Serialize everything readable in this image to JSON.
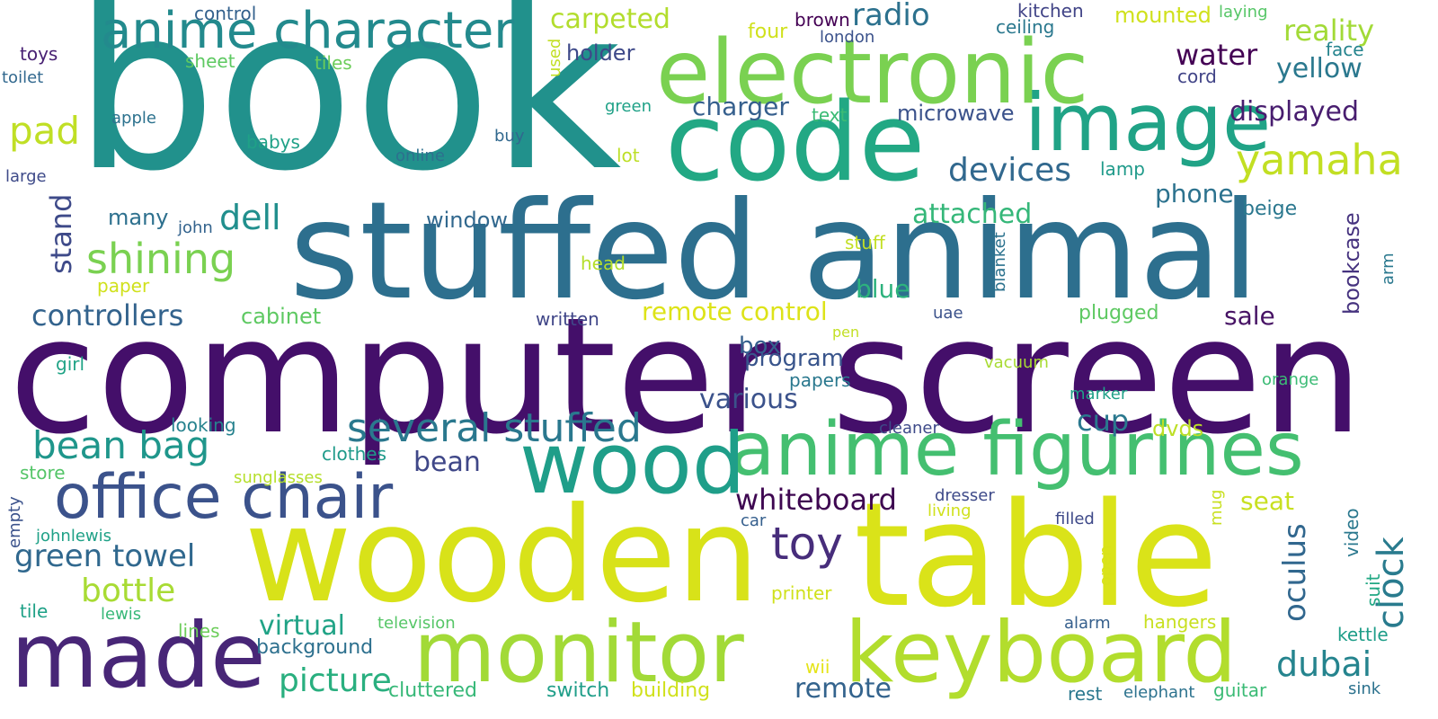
{
  "words": [
    {
      "text": "book",
      "color": "#21918c"
    },
    {
      "text": "computer screen",
      "color": "#440f6a"
    },
    {
      "text": "stuffed animal",
      "color": "#2d6f8e"
    },
    {
      "text": "wooden",
      "color": "#d8e219"
    },
    {
      "text": "table",
      "color": "#dae319"
    },
    {
      "text": "electronic",
      "color": "#7ad151"
    },
    {
      "text": "code",
      "color": "#22a884"
    },
    {
      "text": "image",
      "color": "#20a386"
    },
    {
      "text": "anime character",
      "color": "#238a8d"
    },
    {
      "text": "anime figurines",
      "color": "#44bf70"
    },
    {
      "text": "wood",
      "color": "#1f9e89"
    },
    {
      "text": "monitor",
      "color": "#a2da37"
    },
    {
      "text": "keyboard",
      "color": "#b2dd2d"
    },
    {
      "text": "made",
      "color": "#482677"
    },
    {
      "text": "office chair",
      "color": "#3b528b"
    },
    {
      "text": "several stuffed",
      "color": "#2a788e"
    },
    {
      "text": "bean bag",
      "color": "#1f968b"
    },
    {
      "text": "shining",
      "color": "#7ad151"
    },
    {
      "text": "yamaha",
      "color": "#c2df23"
    },
    {
      "text": "toy",
      "color": "#472d7b"
    },
    {
      "text": "green towel",
      "color": "#30688e"
    },
    {
      "text": "dell",
      "color": "#218f8d"
    },
    {
      "text": "devices",
      "color": "#31688e"
    },
    {
      "text": "radio",
      "color": "#2c718e"
    },
    {
      "text": "pad",
      "color": "#c0df25"
    },
    {
      "text": "controllers",
      "color": "#33638d"
    },
    {
      "text": "bottle",
      "color": "#a8db34"
    },
    {
      "text": "whiteboard",
      "color": "#3e0751"
    },
    {
      "text": "picture",
      "color": "#29af7f"
    },
    {
      "text": "dubai",
      "color": "#25848e"
    },
    {
      "text": "clock",
      "color": "#297b8e"
    },
    {
      "text": "oculus",
      "color": "#31678e"
    },
    {
      "text": "remote control",
      "color": "#dde318"
    },
    {
      "text": "carpeted",
      "color": "#b2dd2d"
    },
    {
      "text": "attached",
      "color": "#35b779"
    },
    {
      "text": "reality",
      "color": "#a2da37"
    },
    {
      "text": "yellow",
      "color": "#2a788e"
    },
    {
      "text": "displayed",
      "color": "#481d6f"
    },
    {
      "text": "water",
      "color": "#440154"
    },
    {
      "text": "cup",
      "color": "#2a788e"
    },
    {
      "text": "virtual",
      "color": "#20a386"
    },
    {
      "text": "remote",
      "color": "#33638d"
    },
    {
      "text": "stand",
      "color": "#3e4a89"
    },
    {
      "text": "various",
      "color": "#3b528b"
    },
    {
      "text": "program",
      "color": "#39558c"
    },
    {
      "text": "phone",
      "color": "#2c728e"
    },
    {
      "text": "bean",
      "color": "#3f4788"
    },
    {
      "text": "blue",
      "color": "#2db27d"
    },
    {
      "text": "sale",
      "color": "#471365"
    },
    {
      "text": "seat",
      "color": "#c8e020"
    },
    {
      "text": "microwave",
      "color": "#3b528b"
    },
    {
      "text": "charger",
      "color": "#355f8d"
    },
    {
      "text": "window",
      "color": "#31688e"
    },
    {
      "text": "box",
      "color": "#355f8d"
    },
    {
      "text": "bookcase",
      "color": "#46337f"
    },
    {
      "text": "many",
      "color": "#2d708e"
    },
    {
      "text": "cabinet",
      "color": "#5ec962"
    },
    {
      "text": "holder",
      "color": "#3e4989"
    },
    {
      "text": "mounted",
      "color": "#d0e11c"
    },
    {
      "text": "dvds",
      "color": "#bddf26"
    },
    {
      "text": "beige",
      "color": "#2a778e"
    },
    {
      "text": "background",
      "color": "#2d708e"
    },
    {
      "text": "cluttered",
      "color": "#37b878"
    },
    {
      "text": "switch",
      "color": "#1f9e89"
    },
    {
      "text": "building",
      "color": "#d0e11c"
    },
    {
      "text": "plugged",
      "color": "#5ec962"
    },
    {
      "text": "written",
      "color": "#404688"
    },
    {
      "text": "kitchen",
      "color": "#414487"
    },
    {
      "text": "ceiling",
      "color": "#2a788e"
    },
    {
      "text": "face",
      "color": "#25848e"
    },
    {
      "text": "cord",
      "color": "#414487"
    },
    {
      "text": "laying",
      "color": "#56c667"
    },
    {
      "text": "brown",
      "color": "#440154"
    },
    {
      "text": "london",
      "color": "#3b528b"
    },
    {
      "text": "four",
      "color": "#d0e11c"
    },
    {
      "text": "control",
      "color": "#34618d"
    },
    {
      "text": "toys",
      "color": "#482173"
    },
    {
      "text": "toilet",
      "color": "#31688e"
    },
    {
      "text": "sheet",
      "color": "#5ec962"
    },
    {
      "text": "tiles",
      "color": "#6ccd5a"
    },
    {
      "text": "apple",
      "color": "#2c728e"
    },
    {
      "text": "babys",
      "color": "#1fa187"
    },
    {
      "text": "online",
      "color": "#2d708e"
    },
    {
      "text": "buy",
      "color": "#31688e"
    },
    {
      "text": "green",
      "color": "#1fa187"
    },
    {
      "text": "text",
      "color": "#3bbb75"
    },
    {
      "text": "lot",
      "color": "#bddf26"
    },
    {
      "text": "used",
      "color": "#c2df23"
    },
    {
      "text": "lamp",
      "color": "#1f9a8a"
    },
    {
      "text": "large",
      "color": "#3e4a89"
    },
    {
      "text": "john",
      "color": "#33638d"
    },
    {
      "text": "stuff",
      "color": "#c2df23"
    },
    {
      "text": "head",
      "color": "#b5de2b"
    },
    {
      "text": "paper",
      "color": "#d0e11c"
    },
    {
      "text": "blanket",
      "color": "#2c728e"
    },
    {
      "text": "arm",
      "color": "#2a788e"
    },
    {
      "text": "uae",
      "color": "#3b528b"
    },
    {
      "text": "pen",
      "color": "#c2df23"
    },
    {
      "text": "girl",
      "color": "#20a386"
    },
    {
      "text": "vacuum",
      "color": "#a8db34"
    },
    {
      "text": "orange",
      "color": "#3bbb75"
    },
    {
      "text": "papers",
      "color": "#2a788e"
    },
    {
      "text": "marker",
      "color": "#1fa187"
    },
    {
      "text": "looking",
      "color": "#26828e"
    },
    {
      "text": "cleaner",
      "color": "#3e4a89"
    },
    {
      "text": "clothes",
      "color": "#1f9a8a"
    },
    {
      "text": "store",
      "color": "#54c568"
    },
    {
      "text": "sunglasses",
      "color": "#b5de2b"
    },
    {
      "text": "empty",
      "color": "#3b528b"
    },
    {
      "text": "dresser",
      "color": "#3e4a89"
    },
    {
      "text": "living",
      "color": "#d0e11c"
    },
    {
      "text": "car",
      "color": "#355f8d"
    },
    {
      "text": "filled",
      "color": "#3e4989"
    },
    {
      "text": "mug",
      "color": "#c8e020"
    },
    {
      "text": "johnlewis",
      "color": "#1fa187"
    },
    {
      "text": "tile",
      "color": "#1fa187"
    },
    {
      "text": "lewis",
      "color": "#37b878"
    },
    {
      "text": "lines",
      "color": "#6ccd5a"
    },
    {
      "text": "television",
      "color": "#56c667"
    },
    {
      "text": "printer",
      "color": "#d0e11c"
    },
    {
      "text": "wii",
      "color": "#e5e419"
    },
    {
      "text": "alarm",
      "color": "#355f8d"
    },
    {
      "text": "hangers",
      "color": "#c8e020"
    },
    {
      "text": "open",
      "color": "#d8e219"
    },
    {
      "text": "suit",
      "color": "#22a884"
    },
    {
      "text": "video",
      "color": "#2a788e"
    },
    {
      "text": "kettle",
      "color": "#1f9e89"
    },
    {
      "text": "rest",
      "color": "#2a788e"
    },
    {
      "text": "elephant",
      "color": "#2c728e"
    },
    {
      "text": "guitar",
      "color": "#3bbb75"
    },
    {
      "text": "sink",
      "color": "#2c728e"
    }
  ]
}
